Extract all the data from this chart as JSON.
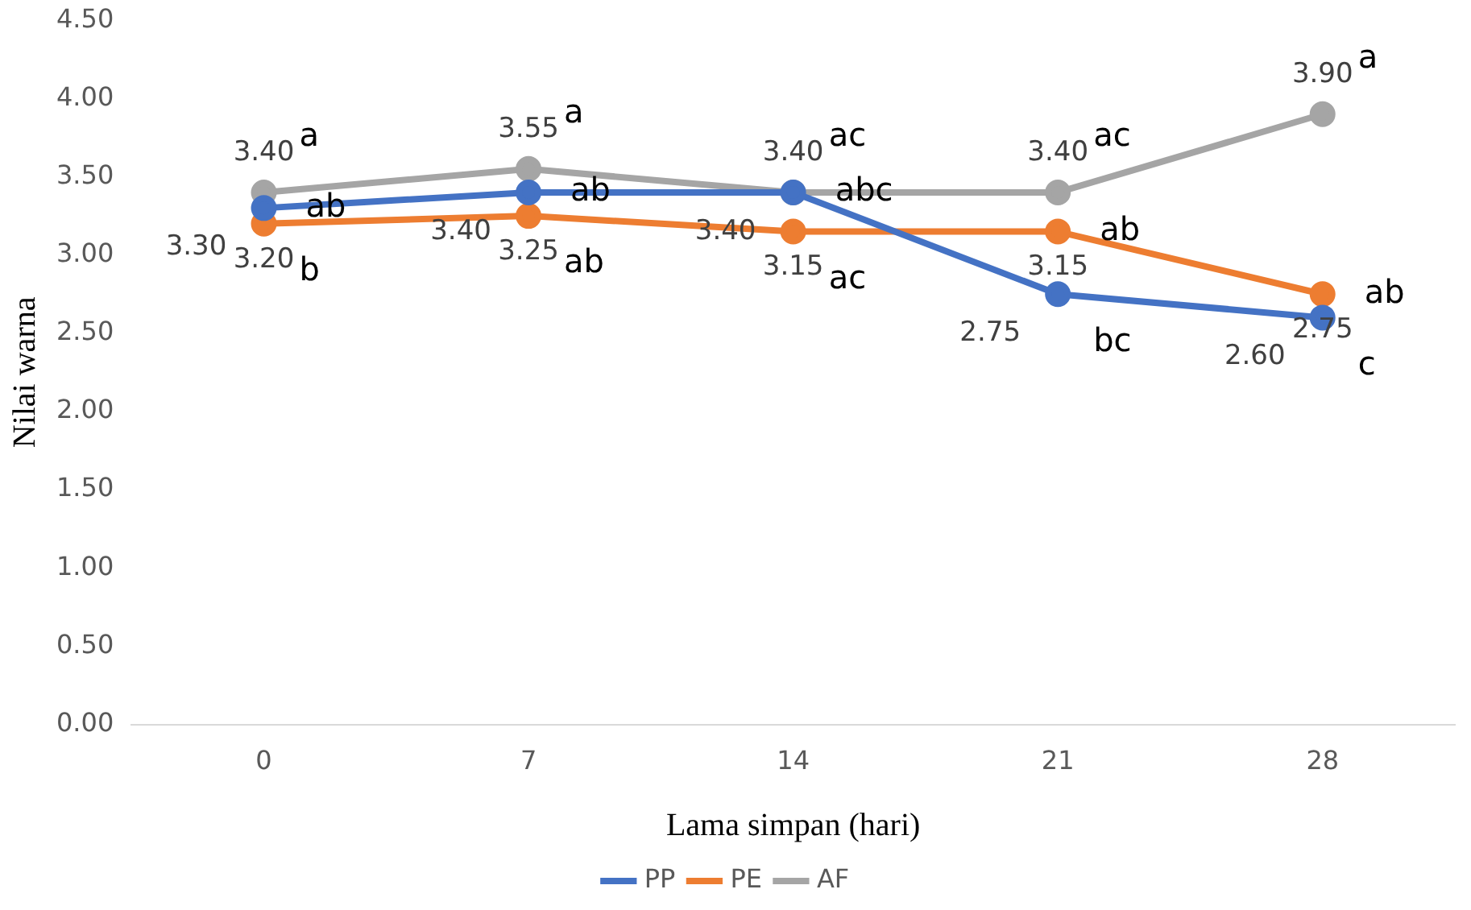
{
  "chart_data": {
    "type": "line",
    "xlabel": "Lama simpan (hari)",
    "ylabel": "Nilai warna",
    "categories": [
      "0",
      "7",
      "14",
      "21",
      "28"
    ],
    "series": [
      {
        "name": "PP",
        "color": "#4472c4",
        "values": [
          3.3,
          3.4,
          3.4,
          2.75,
          2.6
        ],
        "value_labels": [
          "3.30",
          "3.40",
          "3.40",
          "2.75",
          "2.60"
        ]
      },
      {
        "name": "PE",
        "color": "#ed7d31",
        "values": [
          3.2,
          3.25,
          3.15,
          3.15,
          2.75
        ],
        "value_labels": [
          "3.20",
          "3.25",
          "3.15",
          "3.15",
          "2.75"
        ]
      },
      {
        "name": "AF",
        "color": "#a5a5a5",
        "values": [
          3.4,
          3.55,
          3.4,
          3.4,
          3.9
        ],
        "value_labels": [
          "3.40",
          "3.55",
          "3.40",
          "3.40",
          "3.90"
        ]
      }
    ],
    "ylim": [
      0,
      4.5
    ],
    "yticks": [
      {
        "value": 0,
        "label": "0.00"
      },
      {
        "value": 0.5,
        "label": "0.50"
      },
      {
        "value": 1,
        "label": "1.00"
      },
      {
        "value": 1.5,
        "label": "1.50"
      },
      {
        "value": 2,
        "label": "2.00"
      },
      {
        "value": 2.5,
        "label": "2.50"
      },
      {
        "value": 3,
        "label": "3.00"
      },
      {
        "value": 3.5,
        "label": "3.50"
      },
      {
        "value": 4,
        "label": "4.00"
      },
      {
        "value": 4.5,
        "label": "4.50"
      }
    ],
    "annotations": [
      {
        "text": "a",
        "x": "0",
        "y": 3.4
      },
      {
        "text": "ab",
        "x": "0",
        "y": 3.3
      },
      {
        "text": "b",
        "x": "0",
        "y": 3.2
      },
      {
        "text": "a",
        "x": "7",
        "y": 3.55
      },
      {
        "text": "ab",
        "x": "7",
        "y": 3.4
      },
      {
        "text": "ab",
        "x": "7",
        "y": 3.25
      },
      {
        "text": "ac",
        "x": "14",
        "y": 3.4
      },
      {
        "text": "abc",
        "x": "14",
        "y": 3.4
      },
      {
        "text": "ac",
        "x": "14",
        "y": 3.15
      },
      {
        "text": "ac",
        "x": "21",
        "y": 3.4
      },
      {
        "text": "ab",
        "x": "21",
        "y": 3.15
      },
      {
        "text": "bc",
        "x": "21",
        "y": 2.75
      },
      {
        "text": "a",
        "x": "28",
        "y": 3.9
      },
      {
        "text": "ab",
        "x": "28",
        "y": 2.75
      },
      {
        "text": "c",
        "x": "28",
        "y": 2.6
      }
    ],
    "grid": false,
    "legend": "bottom",
    "marker": "circle",
    "line_style": "solid"
  }
}
